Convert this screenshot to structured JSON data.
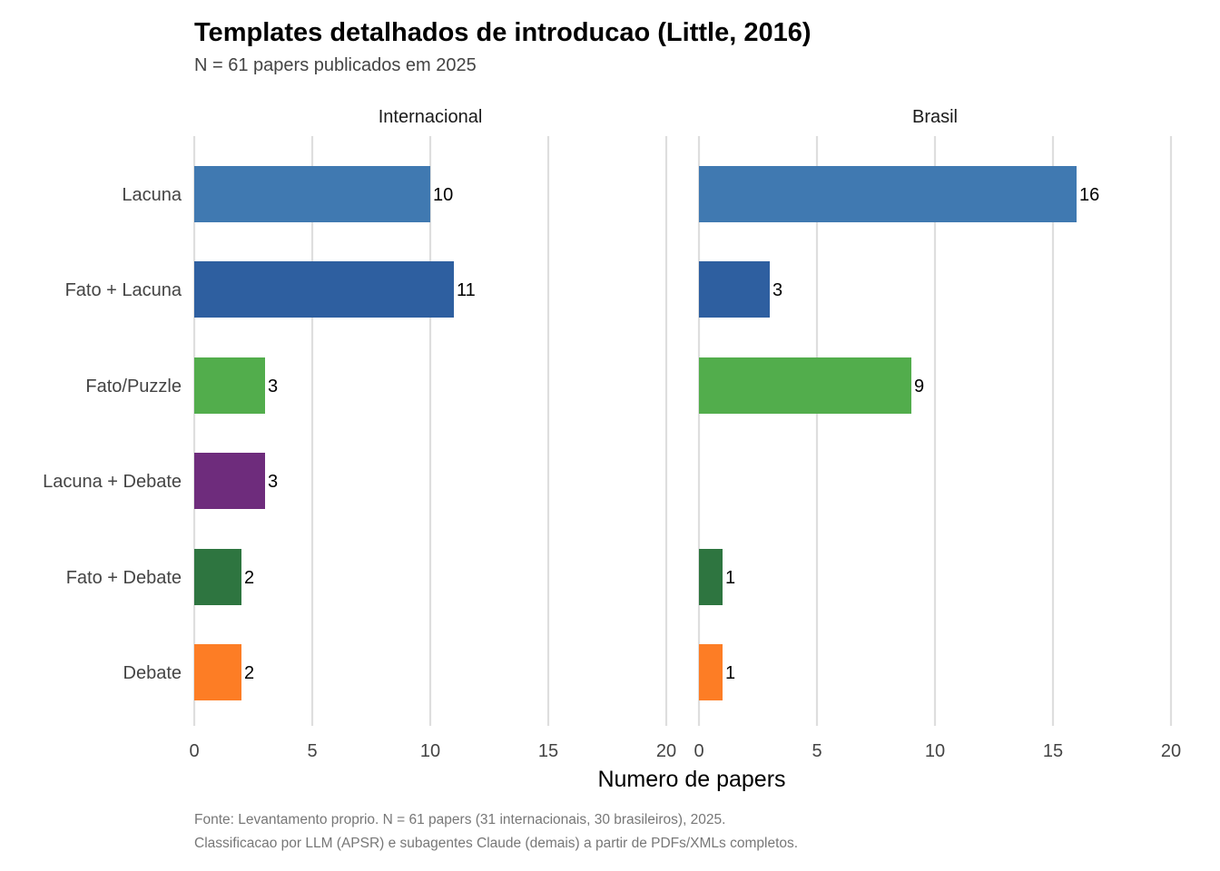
{
  "chart_data": {
    "type": "bar",
    "orientation": "horizontal",
    "title": "Templates detalhados de introducao (Little, 2016)",
    "subtitle": "N = 61 papers publicados em 2025",
    "xlabel": "Numero de papers",
    "ylabel": "",
    "xlim": [
      0,
      20
    ],
    "xticks": [
      "0",
      "5",
      "10",
      "15",
      "20"
    ],
    "grid": true,
    "categories": [
      "Lacuna",
      "Fato + Lacuna",
      "Fato/Puzzle",
      "Lacuna + Debate",
      "Fato + Debate",
      "Debate"
    ],
    "colors": [
      "#4079b1",
      "#2e5fa0",
      "#52ad4c",
      "#6e2c7c",
      "#2e7540",
      "#fd7d25"
    ],
    "panels": [
      {
        "name": "Internacional",
        "values": [
          10,
          11,
          3,
          3,
          2,
          2
        ]
      },
      {
        "name": "Brasil",
        "values": [
          16,
          3,
          9,
          0,
          1,
          1
        ]
      }
    ],
    "caption": [
      "Fonte: Levantamento proprio. N = 61 papers (31 internacionais, 30 brasileiros), 2025.",
      "Classificacao por LLM (APSR) e subagentes Claude (demais) a partir de PDFs/XMLs completos."
    ]
  }
}
